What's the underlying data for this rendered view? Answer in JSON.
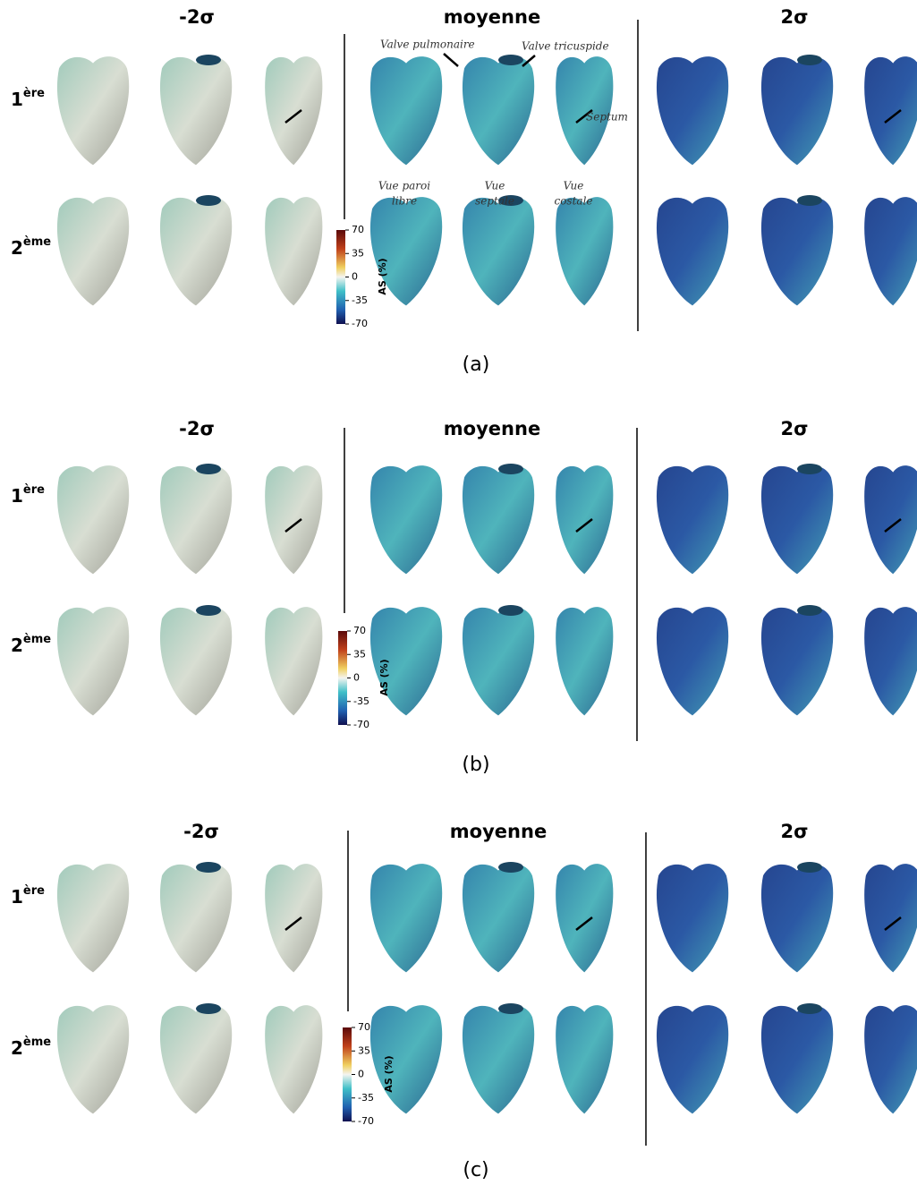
{
  "panels": [
    {
      "caption": "(a)",
      "columns": [
        "-2σ",
        "moyenne",
        "2σ"
      ],
      "rows": [
        {
          "number": "1",
          "suffix": "ère"
        },
        {
          "number": "2",
          "suffix": "ème"
        }
      ],
      "colorbar": {
        "label": "AS (%)",
        "ticks": [
          "70",
          "35",
          "0",
          "-35",
          "-70"
        ]
      },
      "annotations": {
        "valve_pulmonaire": "Valve pulmonaire",
        "valve_tricuspide": "Valve tricuspide",
        "septum": "Septum",
        "views": [
          [
            "Vue paroi",
            "libre"
          ],
          [
            "Vue",
            "septale"
          ],
          [
            "Vue",
            "costale"
          ]
        ]
      }
    },
    {
      "caption": "(b)",
      "columns": [
        "-2σ",
        "moyenne",
        "2σ"
      ],
      "rows": [
        {
          "number": "1",
          "suffix": "ère"
        },
        {
          "number": "2",
          "suffix": "ème"
        }
      ],
      "colorbar": {
        "label": "AS (%)",
        "ticks": [
          "70",
          "35",
          "0",
          "-35",
          "-70"
        ]
      }
    },
    {
      "caption": "(c)",
      "columns": [
        "-2σ",
        "moyenne",
        "2σ"
      ],
      "rows": [
        {
          "number": "1",
          "suffix": "ère"
        },
        {
          "number": "2",
          "suffix": "ème"
        }
      ],
      "colorbar": {
        "label": "AS (%)",
        "ticks": [
          "70",
          "35",
          "0",
          "-35",
          "-70"
        ]
      }
    }
  ]
}
